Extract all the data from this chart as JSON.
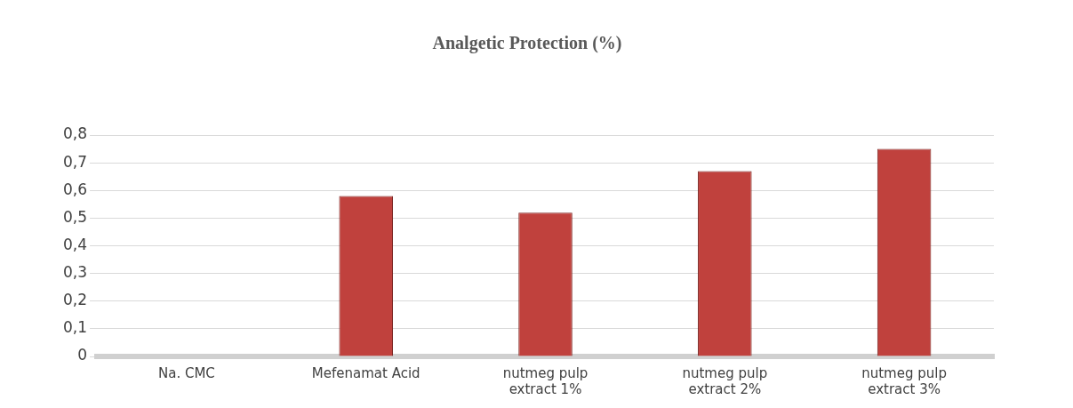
{
  "chart_data": {
    "type": "bar",
    "title": "Analgetic Protection (%)",
    "categories": [
      "Na. CMC",
      "Mefenamat Acid",
      "nutmeg pulp extract 1%",
      "nutmeg pulp extract 2%",
      "nutmeg pulp extract 3%"
    ],
    "values": [
      0,
      0.58,
      0.52,
      0.67,
      0.75
    ],
    "color": "#c0413d",
    "ylim": [
      0,
      0.8
    ],
    "yticks": [
      0,
      {
        "value": 0.1,
        "label": "0,1"
      },
      {
        "value": 0.2,
        "label": "0,2"
      },
      {
        "value": 0.3,
        "label": "0,3"
      },
      {
        "value": 0.4,
        "label": "0,4"
      },
      {
        "value": 0.5,
        "label": "0,5"
      },
      {
        "value": 0.6,
        "label": "0,6"
      },
      {
        "value": 0.7,
        "label": "0,7"
      },
      {
        "value": 0.8,
        "label": "0,8"
      }
    ],
    "grid": "y",
    "legend": false
  }
}
